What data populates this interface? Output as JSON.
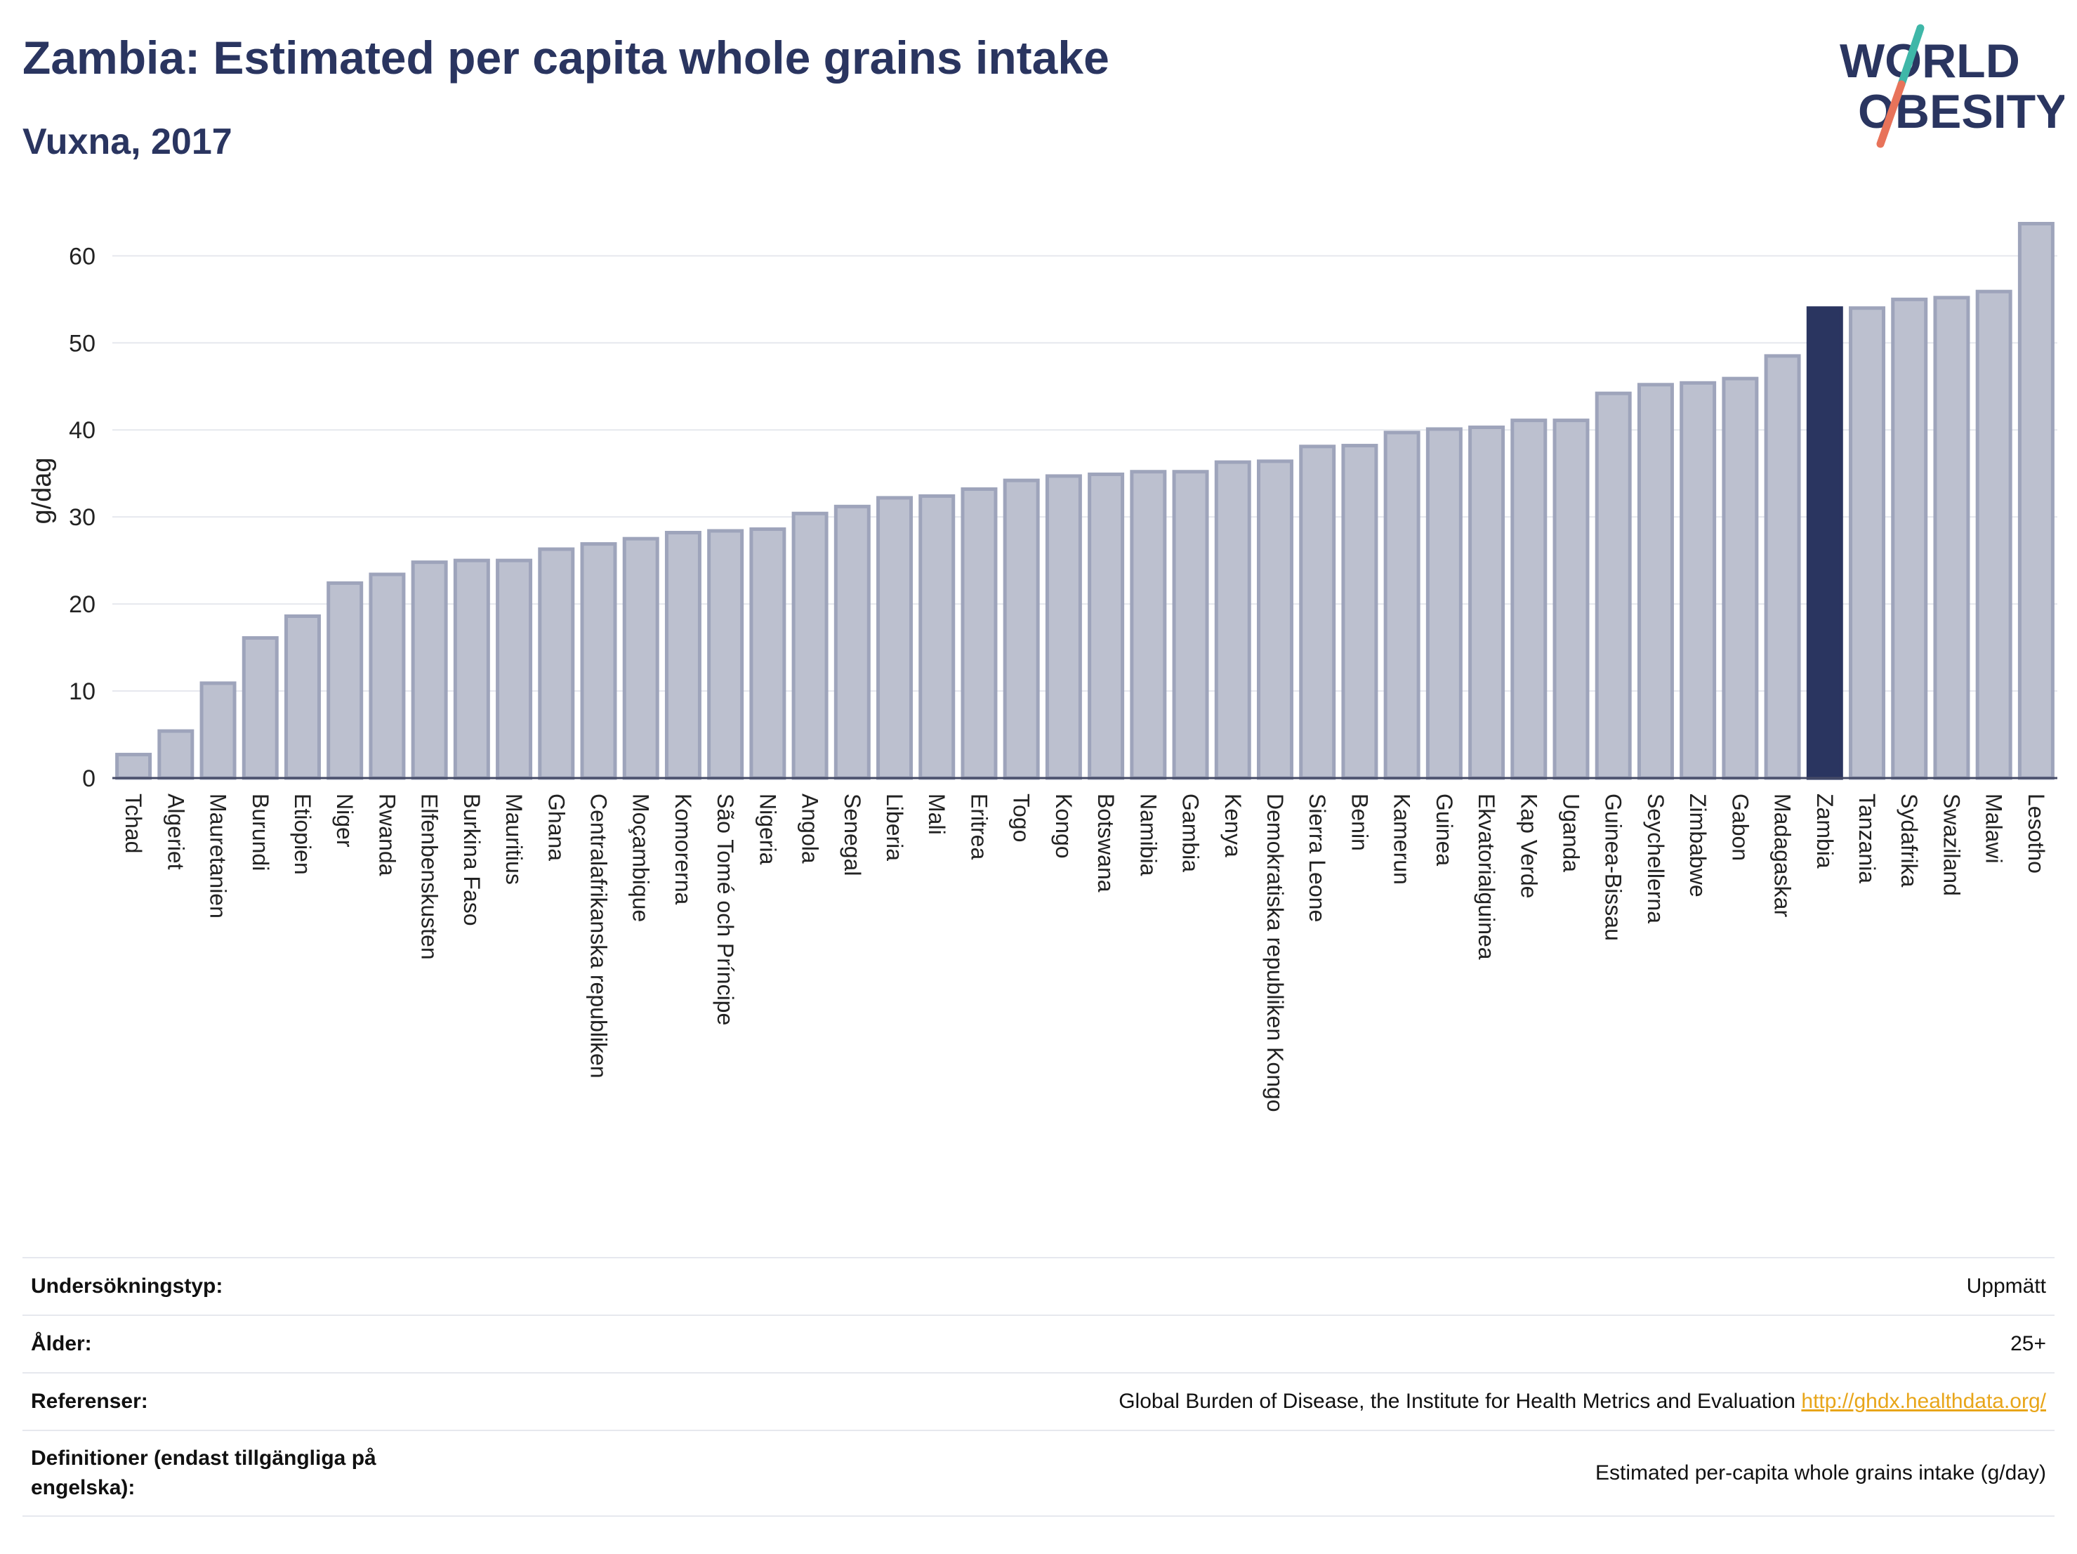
{
  "header": {
    "title": "Zambia: Estimated per capita whole grains intake",
    "subtitle": "Vuxna, 2017",
    "logo": {
      "line1": "WORLD",
      "line2": "OBESITY"
    }
  },
  "colors": {
    "bar_fill": "#bcc0cf",
    "bar_stroke": "#9ea4bb",
    "highlight": "#2a3560",
    "title": "#2a3560",
    "grid": "#e6e8ee",
    "logo_teal": "#3fb7a8",
    "logo_coral": "#e8735a"
  },
  "chart_data": {
    "type": "bar",
    "ylabel": "g/dag",
    "xlabel": "",
    "ylim": [
      0,
      66
    ],
    "yticks": [
      0,
      10,
      20,
      30,
      40,
      50,
      60
    ],
    "grid": true,
    "highlight_category": "Zambia",
    "categories": [
      "Tchad",
      "Algeriet",
      "Mauretanien",
      "Burundi",
      "Etiopien",
      "Niger",
      "Rwanda",
      "Elfenbenskusten",
      "Burkina Faso",
      "Mauritius",
      "Ghana",
      "Centralafrikanska republiken",
      "Moçambique",
      "Komorerna",
      "São Tomé och Príncipe",
      "Nigeria",
      "Angola",
      "Senegal",
      "Liberia",
      "Mali",
      "Eritrea",
      "Togo",
      "Kongo",
      "Botswana",
      "Namibia",
      "Gambia",
      "Kenya",
      "Demokratiska republiken Kongo",
      "Sierra Leone",
      "Benin",
      "Kamerun",
      "Guinea",
      "Ekvatorialguinea",
      "Kap Verde",
      "Uganda",
      "Guinea-Bissau",
      "Seychellerna",
      "Zimbabwe",
      "Gabon",
      "Madagaskar",
      "Zambia",
      "Tanzania",
      "Sydafrika",
      "Swaziland",
      "Malawi",
      "Lesotho"
    ],
    "values": [
      2.7,
      5.4,
      10.9,
      16.1,
      18.6,
      22.4,
      23.4,
      24.8,
      25.0,
      25.0,
      26.3,
      26.9,
      27.5,
      28.2,
      28.4,
      28.6,
      30.4,
      31.2,
      32.2,
      32.4,
      33.2,
      34.2,
      34.7,
      34.9,
      35.2,
      35.2,
      36.3,
      36.4,
      38.1,
      38.2,
      39.7,
      40.1,
      40.3,
      41.1,
      41.1,
      44.2,
      45.2,
      45.4,
      45.9,
      48.5,
      54.0,
      54.0,
      55.0,
      55.2,
      55.9,
      63.7
    ]
  },
  "info": {
    "rows": [
      {
        "key": "Undersökningstyp:",
        "value": "Uppmätt"
      },
      {
        "key": "Ålder:",
        "value": "25+"
      },
      {
        "key": "Referenser:",
        "value": "Global Burden of Disease, the Institute for Health Metrics and Evaluation",
        "link": "http://ghdx.healthdata.org/"
      },
      {
        "key": "Definitioner (endast tillgängliga på engelska):",
        "value": "Estimated per-capita whole grains intake (g/day)"
      }
    ]
  }
}
